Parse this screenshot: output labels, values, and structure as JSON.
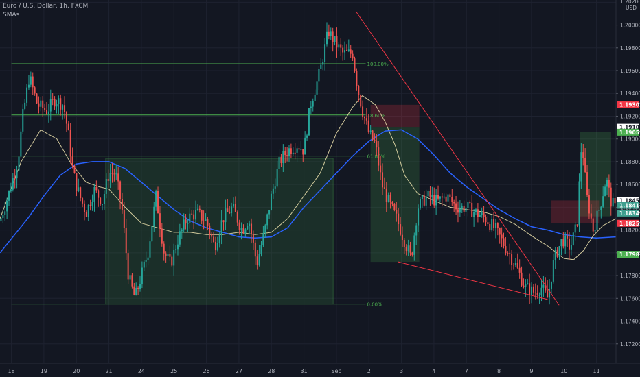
{
  "header": {
    "symbol_line": "Euro / U.S. Dollar, 1h, FXCM",
    "indicators_label": "SMAs"
  },
  "chart_data": {
    "type": "candlestick",
    "currency_label": "USD",
    "y_range": [
      1.1703,
      1.2022
    ],
    "y_ticks": [
      "1.20200",
      "1.20000",
      "1.19800",
      "1.19600",
      "1.19400",
      "1.19200",
      "1.19000",
      "1.18800",
      "1.18600",
      "1.18400",
      "1.18200",
      "1.18000",
      "1.17800",
      "1.17600",
      "1.17400",
      "1.17200"
    ],
    "x_labels": [
      "18",
      "19",
      "20",
      "21",
      "24",
      "25",
      "26",
      "27",
      "28",
      "31",
      "Sep",
      "2",
      "3",
      "4",
      "7",
      "8",
      "9",
      "10",
      "11"
    ],
    "x_positions": [
      0,
      1,
      2,
      3,
      4,
      5,
      6,
      7,
      8,
      9,
      10,
      11,
      12,
      13,
      14,
      15,
      16,
      17,
      18
    ],
    "x_range": [
      -0.35,
      18.6
    ],
    "price_tags": [
      {
        "label": "1.19303",
        "price": 1.19303,
        "color": "#f23645",
        "text": "#ffffff"
      },
      {
        "label": "1.19103",
        "price": 1.19103,
        "color": "#ffffff",
        "text": "#131722"
      },
      {
        "label": "1.19059",
        "price": 1.19059,
        "color": "#4caf50",
        "text": "#ffffff"
      },
      {
        "label": "1.18459",
        "price": 1.18459,
        "color": "#ffffff",
        "text": "#131722"
      },
      {
        "label": "1.18417",
        "price": 1.18417,
        "color": "#3e9e8e",
        "text": "#ffffff"
      },
      {
        "label": "1.18349",
        "price": 1.18349,
        "color": "#3e9e8e",
        "text": "#ffffff"
      },
      {
        "label": "1.18259",
        "price": 1.18259,
        "color": "#f23645",
        "text": "#ffffff"
      },
      {
        "label": "1.17987",
        "price": 1.17987,
        "color": "#4caf50",
        "text": "#ffffff"
      }
    ],
    "fibonacci": {
      "x_start": 0.0,
      "x_end": 10.9,
      "color": "#4caf50",
      "levels": [
        {
          "label": "100.00%",
          "price": 1.1966
        },
        {
          "label": "78.60%",
          "price": 1.1921
        },
        {
          "label": "61.80%",
          "price": 1.1885
        },
        {
          "label": "0.00%",
          "price": 1.1755
        }
      ]
    },
    "wedge_lines": [
      {
        "x1": 10.6,
        "y1": 1.2012,
        "x2": 16.85,
        "y2": 1.1754
      },
      {
        "x1": 11.9,
        "y1": 1.1792,
        "x2": 16.5,
        "y2": 1.1759
      }
    ],
    "boxes": [
      {
        "x1": 2.9,
        "x2": 9.9,
        "y1": 1.1755,
        "y2": 1.1883,
        "fill": "rgba(76,175,80,0.16)",
        "stroke": "rgba(76,175,80,0.35)"
      },
      {
        "x1": 11.05,
        "x2": 12.55,
        "y1": 1.1792,
        "y2": 1.191,
        "fill": "rgba(76,175,80,0.20)",
        "stroke": "none"
      },
      {
        "x1": 11.05,
        "x2": 12.55,
        "y1": 1.191,
        "y2": 1.193,
        "fill": "rgba(242,54,69,0.22)",
        "stroke": "none"
      },
      {
        "x1": 17.5,
        "x2": 18.45,
        "y1": 1.1832,
        "y2": 1.1906,
        "fill": "rgba(76,175,80,0.22)",
        "stroke": "none"
      },
      {
        "x1": 16.6,
        "x2": 18.1,
        "y1": 1.1826,
        "y2": 1.1846,
        "fill": "rgba(242,54,69,0.22)",
        "stroke": "none"
      }
    ],
    "sma_fast": {
      "color": "#f2e6b0",
      "points": [
        [
          -0.35,
          1.183
        ],
        [
          0.3,
          1.188
        ],
        [
          0.9,
          1.1908
        ],
        [
          1.4,
          1.19
        ],
        [
          1.8,
          1.188
        ],
        [
          2.3,
          1.1862
        ],
        [
          2.7,
          1.1858
        ],
        [
          3.0,
          1.1856
        ],
        [
          3.5,
          1.184
        ],
        [
          4.0,
          1.1826
        ],
        [
          4.5,
          1.1822
        ],
        [
          5.0,
          1.1818
        ],
        [
          5.5,
          1.1818
        ],
        [
          6.0,
          1.1816
        ],
        [
          6.5,
          1.1816
        ],
        [
          7.0,
          1.1818
        ],
        [
          7.5,
          1.1816
        ],
        [
          8.0,
          1.1818
        ],
        [
          8.5,
          1.183
        ],
        [
          9.0,
          1.185
        ],
        [
          9.5,
          1.187
        ],
        [
          10.0,
          1.1905
        ],
        [
          10.5,
          1.1928
        ],
        [
          10.8,
          1.1938
        ],
        [
          11.2,
          1.193
        ],
        [
          11.5,
          1.1915
        ],
        [
          11.8,
          1.1895
        ],
        [
          12.1,
          1.1868
        ],
        [
          12.5,
          1.1852
        ],
        [
          13.0,
          1.1846
        ],
        [
          13.5,
          1.184
        ],
        [
          14.0,
          1.1838
        ],
        [
          14.5,
          1.1836
        ],
        [
          15.0,
          1.1832
        ],
        [
          15.5,
          1.1825
        ],
        [
          16.0,
          1.1815
        ],
        [
          16.5,
          1.1806
        ],
        [
          17.0,
          1.1795
        ],
        [
          17.3,
          1.1794
        ],
        [
          17.6,
          1.1802
        ],
        [
          17.9,
          1.1815
        ],
        [
          18.2,
          1.1824
        ],
        [
          18.6,
          1.183
        ]
      ]
    },
    "sma_slow": {
      "color": "#2962ff",
      "points": [
        [
          -0.35,
          1.18
        ],
        [
          0.5,
          1.183
        ],
        [
          1.0,
          1.185
        ],
        [
          1.5,
          1.1868
        ],
        [
          2.0,
          1.1878
        ],
        [
          2.5,
          1.188
        ],
        [
          3.0,
          1.188
        ],
        [
          3.5,
          1.1874
        ],
        [
          4.0,
          1.1862
        ],
        [
          4.5,
          1.185
        ],
        [
          5.0,
          1.1838
        ],
        [
          5.5,
          1.1828
        ],
        [
          6.0,
          1.1822
        ],
        [
          6.5,
          1.1818
        ],
        [
          7.0,
          1.1814
        ],
        [
          7.5,
          1.1813
        ],
        [
          8.0,
          1.1814
        ],
        [
          8.5,
          1.1822
        ],
        [
          9.0,
          1.184
        ],
        [
          9.5,
          1.1855
        ],
        [
          10.0,
          1.187
        ],
        [
          10.5,
          1.1885
        ],
        [
          11.0,
          1.1898
        ],
        [
          11.5,
          1.1907
        ],
        [
          12.0,
          1.1908
        ],
        [
          12.5,
          1.19
        ],
        [
          13.0,
          1.1886
        ],
        [
          13.5,
          1.187
        ],
        [
          14.0,
          1.1858
        ],
        [
          14.5,
          1.1848
        ],
        [
          15.0,
          1.1838
        ],
        [
          15.5,
          1.183
        ],
        [
          16.0,
          1.1823
        ],
        [
          16.5,
          1.182
        ],
        [
          17.0,
          1.1816
        ],
        [
          17.5,
          1.1814
        ],
        [
          18.0,
          1.1813
        ],
        [
          18.6,
          1.1814
        ]
      ]
    },
    "price_path": [
      [
        -0.35,
        1.1828
      ],
      [
        -0.1,
        1.185
      ],
      [
        0.2,
        1.188
      ],
      [
        0.35,
        1.192
      ],
      [
        0.55,
        1.1955
      ],
      [
        0.8,
        1.193
      ],
      [
        1.1,
        1.1925
      ],
      [
        1.35,
        1.1935
      ],
      [
        1.6,
        1.193
      ],
      [
        1.75,
        1.1905
      ],
      [
        1.9,
        1.187
      ],
      [
        2.1,
        1.185
      ],
      [
        2.3,
        1.1835
      ],
      [
        2.55,
        1.1855
      ],
      [
        2.8,
        1.1845
      ],
      [
        3.0,
        1.187
      ],
      [
        3.2,
        1.187
      ],
      [
        3.4,
        1.184
      ],
      [
        3.6,
        1.178
      ],
      [
        3.8,
        1.176
      ],
      [
        4.0,
        1.178
      ],
      [
        4.2,
        1.18
      ],
      [
        4.45,
        1.185
      ],
      [
        4.7,
        1.18
      ],
      [
        4.9,
        1.179
      ],
      [
        5.1,
        1.181
      ],
      [
        5.4,
        1.183
      ],
      [
        5.7,
        1.1835
      ],
      [
        6.0,
        1.1828
      ],
      [
        6.25,
        1.1805
      ],
      [
        6.5,
        1.183
      ],
      [
        6.8,
        1.184
      ],
      [
        7.1,
        1.182
      ],
      [
        7.3,
        1.183
      ],
      [
        7.55,
        1.179
      ],
      [
        7.8,
        1.182
      ],
      [
        8.0,
        1.185
      ],
      [
        8.25,
        1.188
      ],
      [
        8.5,
        1.189
      ],
      [
        8.8,
        1.1895
      ],
      [
        9.0,
        1.189
      ],
      [
        9.2,
        1.193
      ],
      [
        9.5,
        1.196
      ],
      [
        9.75,
        1.1995
      ],
      [
        9.95,
        1.1985
      ],
      [
        10.2,
        1.1975
      ],
      [
        10.5,
        1.1975
      ],
      [
        10.65,
        1.1945
      ],
      [
        10.8,
        1.1925
      ],
      [
        11.0,
        1.1905
      ],
      [
        11.2,
        1.1895
      ],
      [
        11.4,
        1.186
      ],
      [
        11.6,
        1.1845
      ],
      [
        11.85,
        1.183
      ],
      [
        12.1,
        1.181
      ],
      [
        12.3,
        1.1795
      ],
      [
        12.5,
        1.184
      ],
      [
        12.8,
        1.185
      ],
      [
        13.1,
        1.1845
      ],
      [
        13.4,
        1.185
      ],
      [
        13.7,
        1.184
      ],
      [
        14.0,
        1.184
      ],
      [
        14.3,
        1.1835
      ],
      [
        14.6,
        1.183
      ],
      [
        14.9,
        1.182
      ],
      [
        15.2,
        1.1805
      ],
      [
        15.5,
        1.179
      ],
      [
        15.8,
        1.177
      ],
      [
        16.1,
        1.1765
      ],
      [
        16.3,
        1.177
      ],
      [
        16.5,
        1.176
      ],
      [
        16.7,
        1.1795
      ],
      [
        16.95,
        1.1812
      ],
      [
        17.2,
        1.1805
      ],
      [
        17.4,
        1.1825
      ],
      [
        17.55,
        1.19
      ],
      [
        17.7,
        1.185
      ],
      [
        17.9,
        1.182
      ],
      [
        18.1,
        1.184
      ],
      [
        18.3,
        1.1865
      ],
      [
        18.45,
        1.1845
      ],
      [
        18.6,
        1.1838
      ]
    ]
  }
}
